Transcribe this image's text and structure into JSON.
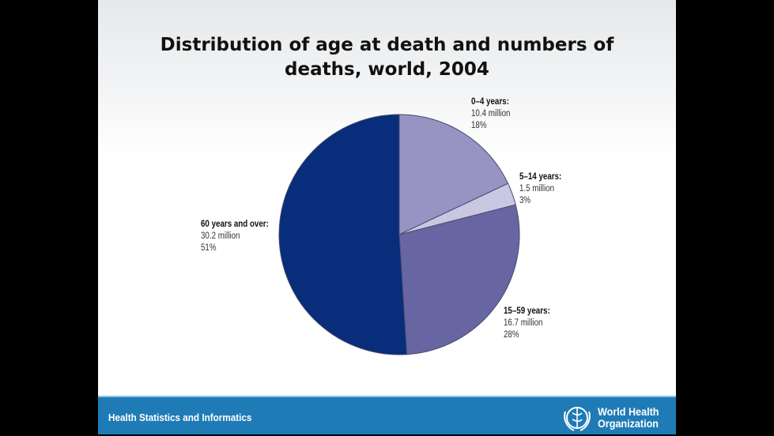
{
  "chart_data": {
    "type": "pie",
    "title": "Distribution of age at death and numbers of deaths, world, 2004",
    "title_lines": [
      "Distribution of age at death and numbers of",
      "deaths, world, 2004"
    ],
    "slices": [
      {
        "label": "0–4 years:",
        "value_text": "10.4 million",
        "pct_text": "18%",
        "deaths_million": 10.4,
        "percent": 18,
        "color": "#9794c4"
      },
      {
        "label": "5–14 years:",
        "value_text": "1.5 million",
        "pct_text": "3%",
        "deaths_million": 1.5,
        "percent": 3,
        "color": "#c9c7e1"
      },
      {
        "label": "15–59 years:",
        "value_text": "16.7 million",
        "pct_text": "28%",
        "deaths_million": 16.7,
        "percent": 28,
        "color": "#6766a3"
      },
      {
        "label": "60 years and over:",
        "value_text": "30.2 million",
        "pct_text": "51%",
        "deaths_million": 30.2,
        "percent": 51,
        "color": "#082d7a"
      }
    ]
  },
  "footer": {
    "left_text": "Health Statistics and Informatics",
    "org_line1": "World Health",
    "org_line2": "Organization"
  }
}
